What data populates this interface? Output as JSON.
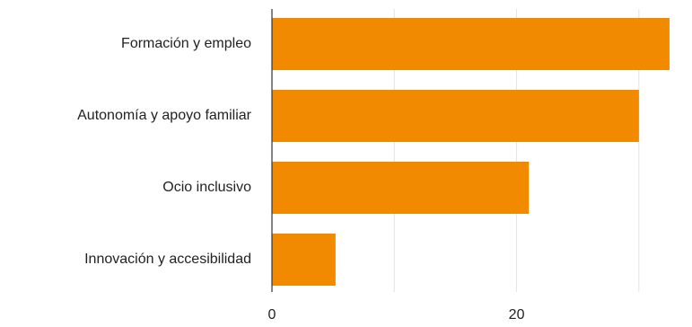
{
  "chart_data": {
    "type": "bar",
    "orientation": "horizontal",
    "categories": [
      "Formación y empleo",
      "Autonomía y apoyo familiar",
      "Ocio inclusivo",
      "Innovación y accesibilidad"
    ],
    "values": [
      32.5,
      30,
      21,
      5.2
    ],
    "xlim": [
      0,
      35
    ],
    "xticks": [
      0,
      10,
      20,
      30
    ],
    "xtick_labels": [
      "0",
      "",
      "20",
      ""
    ],
    "grid": true,
    "bar_color": "#F28A00",
    "title": "",
    "xlabel": "",
    "ylabel": ""
  }
}
